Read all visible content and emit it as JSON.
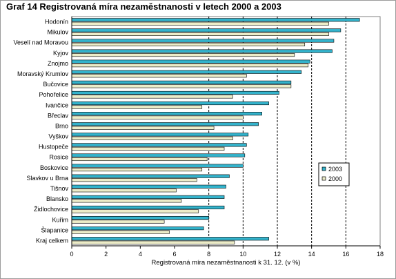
{
  "title": "Graf 14  Registrovaná míra nezaměstnanosti v letech 2000 a 2003",
  "chart_data": {
    "type": "bar",
    "orientation": "horizontal",
    "xlabel": "Registrovaná míra nezaměstnanosti k 31. 12. (v %)",
    "xlim": [
      0,
      18
    ],
    "xticks": [
      0,
      2,
      4,
      6,
      8,
      10,
      12,
      14,
      16,
      18
    ],
    "grid": "dashed vertical lines at 8, 10, 12, 14 and 16",
    "legend_position": "right",
    "categories": [
      "Hodonín",
      "Mikulov",
      "Veselí nad Moravou",
      "Kyjov",
      "Znojmo",
      "Moravský Krumlov",
      "Bučovice",
      "Pohořelice",
      "Ivančice",
      "Břeclav",
      "Brno",
      "Vyškov",
      "Hustopeče",
      "Rosice",
      "Boskovice",
      "Slavkov u Brna",
      "Tišnov",
      "Blansko",
      "Židlochovice",
      "Kuřim",
      "Šlapanice",
      "Kraj celkem"
    ],
    "series": [
      {
        "name": "2003",
        "color": "#33b3cc",
        "values": [
          16.8,
          15.7,
          15.3,
          15.2,
          13.9,
          13.4,
          12.8,
          12.1,
          11.5,
          11.1,
          10.9,
          10.3,
          10.2,
          10.1,
          10.0,
          9.2,
          9.0,
          8.9,
          8.9,
          8.0,
          7.7,
          11.5
        ]
      },
      {
        "name": "2000",
        "color": "#ececc8",
        "values": [
          15.0,
          15.0,
          13.6,
          13.0,
          13.8,
          10.2,
          12.8,
          9.4,
          7.6,
          10.0,
          8.3,
          9.4,
          8.9,
          7.9,
          7.6,
          7.3,
          6.1,
          6.4,
          7.4,
          5.4,
          5.7,
          9.5
        ]
      }
    ]
  }
}
